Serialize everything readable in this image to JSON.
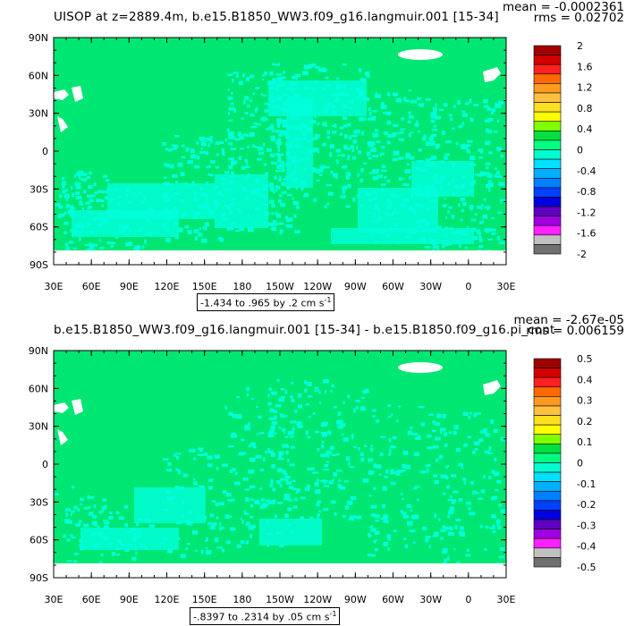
{
  "panels": [
    {
      "title": "UISOP at z=2889.4m, b.e15.B1850_WW3.f09_g16.langmuir.001 [15-34]",
      "mean_text": "mean = -0.0002361",
      "rms_text": "rms = 0.02702",
      "range_text": "-1.434 to .965 by .2 cm s",
      "range_sup": "-1",
      "colorbar": {
        "labels": [
          "2",
          "1.6",
          "1.2",
          "0.8",
          "0.4",
          "0",
          "-0.4",
          "-0.8",
          "-1.2",
          "-1.6",
          "-2"
        ],
        "colors": [
          "#a00000",
          "#d40000",
          "#ff2020",
          "#ff6a00",
          "#ff9a20",
          "#ffc040",
          "#ffe020",
          "#ffff00",
          "#80ff00",
          "#00e040",
          "#00ff80",
          "#00ffd0",
          "#00e0ff",
          "#00b0ff",
          "#0080ff",
          "#0040ff",
          "#0000e0",
          "#6000c0",
          "#a000e0",
          "#ff20ff",
          "#c0c0c0",
          "#707070"
        ]
      }
    },
    {
      "title": "b.e15.B1850_WW3.f09_g16.langmuir.001 [15-34] - b.e15.B1850.f09_g16.pi_cont",
      "mean_text": "mean = -2.67e-05",
      "rms_text": "rms = 0.006159",
      "range_text": "-.8397 to .2314 by .05 cm s",
      "range_sup": "-1",
      "colorbar": {
        "labels": [
          "0.5",
          "0.4",
          "0.3",
          "0.2",
          "0.1",
          "0",
          "-0.1",
          "-0.2",
          "-0.3",
          "-0.4",
          "-0.5"
        ],
        "colors": [
          "#a00000",
          "#d40000",
          "#ff2020",
          "#ff6a00",
          "#ff9a20",
          "#ffc040",
          "#ffe020",
          "#ffff00",
          "#80ff00",
          "#00e040",
          "#00ff80",
          "#00ffd0",
          "#00e0ff",
          "#00b0ff",
          "#0080ff",
          "#0040ff",
          "#0000e0",
          "#6000c0",
          "#a000e0",
          "#ff20ff",
          "#c0c0c0",
          "#707070"
        ]
      }
    }
  ],
  "axes": {
    "lat_labels": [
      "90N",
      "60N",
      "30N",
      "0",
      "30S",
      "60S",
      "90S"
    ],
    "lon_labels": [
      "30E",
      "60E",
      "90E",
      "120E",
      "150E",
      "180",
      "150W",
      "120W",
      "90W",
      "60W",
      "30W",
      "0",
      "30E"
    ]
  },
  "map_colors": {
    "background": "#00e673",
    "secondary": "#00ffdd",
    "land": "#ffffff"
  }
}
